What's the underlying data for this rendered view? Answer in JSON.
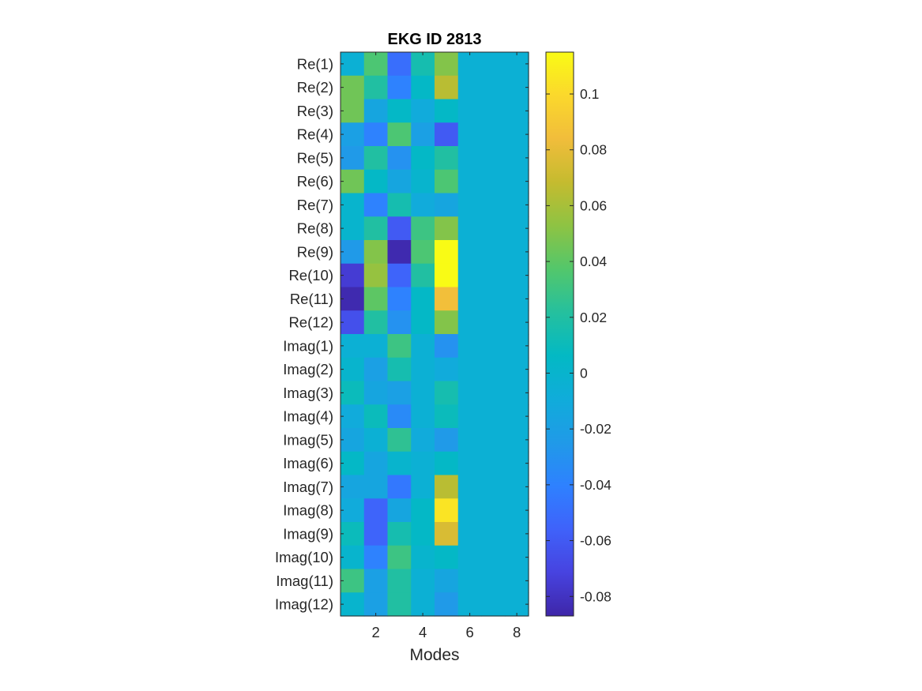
{
  "chart_data": {
    "type": "heatmap",
    "title": "EKG ID 2813",
    "xlabel": "Modes",
    "ylabel": "",
    "x_range": [
      0.5,
      8.5
    ],
    "x_ticks": [
      2,
      4,
      6,
      8
    ],
    "rows": [
      "Re(1)",
      "Re(2)",
      "Re(3)",
      "Re(4)",
      "Re(5)",
      "Re(6)",
      "Re(7)",
      "Re(8)",
      "Re(9)",
      "Re(10)",
      "Re(11)",
      "Re(12)",
      "Imag(1)",
      "Imag(2)",
      "Imag(3)",
      "Imag(4)",
      "Imag(5)",
      "Imag(6)",
      "Imag(7)",
      "Imag(8)",
      "Imag(9)",
      "Imag(10)",
      "Imag(11)",
      "Imag(12)"
    ],
    "columns": [
      1,
      2,
      3,
      4,
      5,
      6,
      7,
      8
    ],
    "values": [
      [
        -0.005,
        0.035,
        -0.05,
        0.015,
        0.05,
        -0.005,
        -0.005,
        -0.005
      ],
      [
        0.045,
        0.02,
        -0.04,
        0.005,
        0.065,
        -0.005,
        -0.005,
        -0.005
      ],
      [
        0.045,
        -0.015,
        0.005,
        -0.01,
        0.005,
        -0.005,
        -0.005,
        -0.005
      ],
      [
        -0.02,
        -0.04,
        0.035,
        -0.02,
        -0.06,
        -0.005,
        -0.005,
        -0.005
      ],
      [
        -0.025,
        0.02,
        -0.03,
        0.005,
        0.02,
        -0.005,
        -0.005,
        -0.005
      ],
      [
        0.045,
        0.005,
        -0.015,
        0.0,
        0.035,
        -0.005,
        -0.005,
        -0.005
      ],
      [
        0.0,
        -0.04,
        0.015,
        -0.01,
        -0.015,
        -0.005,
        -0.005,
        -0.005
      ],
      [
        0.0,
        0.02,
        -0.06,
        0.03,
        0.05,
        -0.005,
        -0.005,
        -0.005
      ],
      [
        -0.025,
        0.05,
        -0.085,
        0.035,
        0.115,
        -0.005,
        -0.005,
        -0.005
      ],
      [
        -0.075,
        0.055,
        -0.055,
        0.02,
        0.115,
        -0.005,
        -0.005,
        -0.005
      ],
      [
        -0.085,
        0.04,
        -0.04,
        0.005,
        0.085,
        -0.005,
        -0.005,
        -0.005
      ],
      [
        -0.065,
        0.02,
        -0.03,
        0.005,
        0.05,
        -0.005,
        -0.005,
        -0.005
      ],
      [
        -0.005,
        -0.005,
        0.03,
        -0.005,
        -0.03,
        -0.005,
        -0.005,
        -0.005
      ],
      [
        0.0,
        -0.02,
        0.015,
        -0.005,
        -0.01,
        -0.005,
        -0.005,
        -0.005
      ],
      [
        0.01,
        -0.015,
        -0.02,
        -0.005,
        0.015,
        -0.005,
        -0.005,
        -0.005
      ],
      [
        -0.01,
        0.01,
        -0.035,
        -0.005,
        0.01,
        -0.005,
        -0.005,
        -0.005
      ],
      [
        -0.015,
        -0.005,
        0.025,
        -0.01,
        -0.025,
        -0.005,
        -0.005,
        -0.005
      ],
      [
        0.005,
        -0.015,
        0.0,
        -0.005,
        0.005,
        -0.005,
        -0.005,
        -0.005
      ],
      [
        -0.015,
        -0.015,
        -0.045,
        -0.005,
        0.065,
        -0.005,
        -0.005,
        -0.005
      ],
      [
        -0.01,
        -0.055,
        -0.015,
        0.005,
        0.105,
        -0.005,
        -0.005,
        -0.005
      ],
      [
        0.01,
        -0.055,
        0.015,
        0.005,
        0.075,
        -0.005,
        -0.005,
        -0.005
      ],
      [
        0.0,
        -0.04,
        0.03,
        0.0,
        0.005,
        -0.005,
        -0.005,
        -0.005
      ],
      [
        0.03,
        -0.02,
        0.02,
        -0.005,
        -0.015,
        -0.005,
        -0.005,
        -0.005
      ],
      [
        0.0,
        -0.02,
        0.02,
        -0.005,
        -0.025,
        -0.005,
        -0.005,
        -0.005
      ]
    ],
    "colorbar": {
      "colormap": "parula",
      "clim": [
        -0.087,
        0.115
      ],
      "ticks": [
        -0.08,
        -0.06,
        -0.04,
        -0.02,
        0,
        0.02,
        0.04,
        0.06,
        0.08,
        0.1
      ],
      "tick_labels": [
        "-0.08",
        "-0.06",
        "-0.04",
        "-0.02",
        "0",
        "0.02",
        "0.04",
        "0.06",
        "0.08",
        "0.1"
      ]
    },
    "colormap_stops": [
      "#3e26a8",
      "#4743e0",
      "#3f62fa",
      "#2e81ff",
      "#209ae8",
      "#10acda",
      "#03b9c4",
      "#25c09e",
      "#53c76b",
      "#8ec343",
      "#c5bb2f",
      "#f1bd3b",
      "#fbd82c",
      "#f9fb15"
    ]
  }
}
